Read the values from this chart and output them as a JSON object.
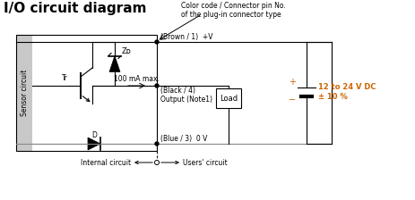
{
  "title": "I/O circuit diagram",
  "annotation_title": "Color code / Connector pin No.\nof the plug-in connector type",
  "brown_label": "(Brown / 1)  +V",
  "black_label": "(Black / 4)\nOutput (Note1)",
  "blue_label": "(Blue / 3)  0 V",
  "current_label": "100 mA max.",
  "voltage_label": "12 to 24 V DC\n± 10 %",
  "tr_label": "Tr",
  "zd_label": "Zᴅ",
  "d_label": "D",
  "load_label": "Load",
  "internal_label": "Internal circuit",
  "users_label": "Users' circuit",
  "bg_color": "#ffffff",
  "text_color": "#000000",
  "orange_color": "#cc6600",
  "sensor_bg": "#c8c8c8",
  "gray_line": "#888888"
}
